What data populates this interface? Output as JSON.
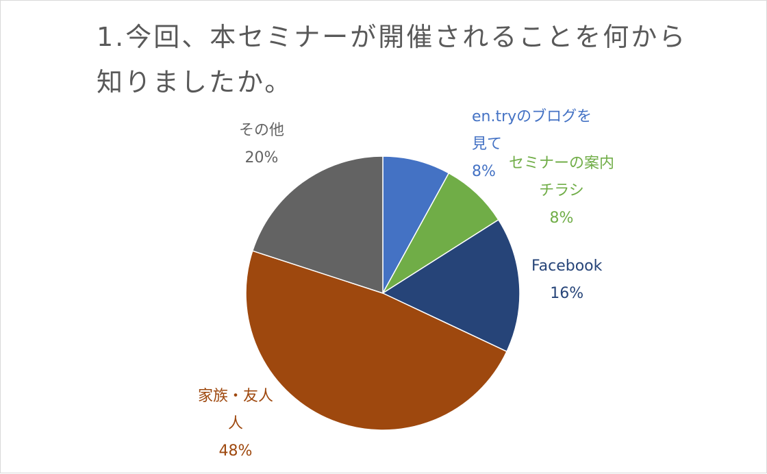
{
  "chart_data": {
    "type": "pie",
    "title": "1.今回、本セミナーが開催されることを何から知りましたか。",
    "start_angle_deg": 0,
    "direction": "clockwise",
    "slices": [
      {
        "label_lines": [
          "en.tryのブログを",
          "見て"
        ],
        "value": 8,
        "value_label": "8%",
        "color": "#4472c4",
        "label_color": "#4472c4"
      },
      {
        "label_lines": [
          "セミナーの案内",
          "チラシ"
        ],
        "value": 8,
        "value_label": "8%",
        "color": "#70ad47",
        "label_color": "#70ad47"
      },
      {
        "label_lines": [
          "Facebook"
        ],
        "value": 16,
        "value_label": "16%",
        "color": "#264478",
        "label_color": "#264478"
      },
      {
        "label_lines": [
          "家族・友人",
          "人"
        ],
        "value": 48,
        "value_label": "48%",
        "color": "#9e480e",
        "label_color": "#9e480e"
      },
      {
        "label_lines": [
          "その他"
        ],
        "value": 20,
        "value_label": "20%",
        "color": "#636363",
        "label_color": "#636363"
      }
    ]
  }
}
